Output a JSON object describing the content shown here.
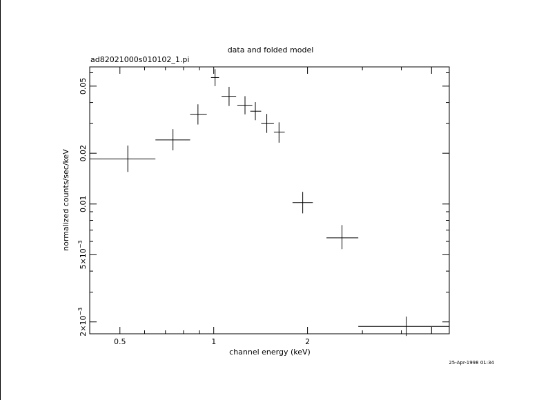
{
  "chart_data": {
    "type": "scatter",
    "title": "data and folded model",
    "subtitle": "ad82021000s010102_1.pi",
    "xlabel": "channel energy (keV)",
    "ylabel": "normalized counts/sec/keV",
    "timestamp": "25-Apr-1998 01:34",
    "xscale": "log",
    "yscale": "log",
    "xlim": [
      0.4,
      5.7
    ],
    "ylim": [
      0.0017,
      0.065
    ],
    "grid": false,
    "x_ticks": [
      {
        "value": 0.5,
        "label": "0.5"
      },
      {
        "value": 1,
        "label": "1"
      },
      {
        "value": 2,
        "label": "2"
      }
    ],
    "y_ticks": [
      {
        "value": 0.05,
        "label": "0.05"
      },
      {
        "value": 0.02,
        "label": "0.02"
      },
      {
        "value": 0.01,
        "label": "0.01"
      },
      {
        "value": 0.005,
        "label": "5×10",
        "exponent": "−3"
      },
      {
        "value": 0.002,
        "label": "2×10",
        "exponent": "−3"
      }
    ],
    "series": [
      {
        "points": [
          {
            "x": 0.53,
            "xlo": 0.4,
            "xhi": 0.65,
            "y": 0.0185,
            "ylo": 0.0155,
            "yhi": 0.0222
          },
          {
            "x": 0.74,
            "xlo": 0.65,
            "xhi": 0.84,
            "y": 0.024,
            "ylo": 0.0208,
            "yhi": 0.0278
          },
          {
            "x": 0.89,
            "xlo": 0.84,
            "xhi": 0.95,
            "y": 0.034,
            "ylo": 0.0296,
            "yhi": 0.039
          },
          {
            "x": 1.01,
            "xlo": 0.98,
            "xhi": 1.04,
            "y": 0.0562,
            "ylo": 0.05,
            "yhi": 0.063
          },
          {
            "x": 1.12,
            "xlo": 1.06,
            "xhi": 1.18,
            "y": 0.0435,
            "ylo": 0.0381,
            "yhi": 0.0495
          },
          {
            "x": 1.26,
            "xlo": 1.19,
            "xhi": 1.33,
            "y": 0.0385,
            "ylo": 0.034,
            "yhi": 0.0436
          },
          {
            "x": 1.36,
            "xlo": 1.31,
            "xhi": 1.42,
            "y": 0.0355,
            "ylo": 0.0314,
            "yhi": 0.0402
          },
          {
            "x": 1.48,
            "xlo": 1.42,
            "xhi": 1.56,
            "y": 0.03,
            "ylo": 0.0264,
            "yhi": 0.0342
          },
          {
            "x": 1.62,
            "xlo": 1.56,
            "xhi": 1.69,
            "y": 0.0267,
            "ylo": 0.0231,
            "yhi": 0.0305
          },
          {
            "x": 1.93,
            "xlo": 1.79,
            "xhi": 2.08,
            "y": 0.0102,
            "ylo": 0.0088,
            "yhi": 0.0118
          },
          {
            "x": 2.58,
            "xlo": 2.3,
            "xhi": 2.91,
            "y": 0.0063,
            "ylo": 0.0054,
            "yhi": 0.0075
          },
          {
            "x": 4.15,
            "xlo": 2.91,
            "xhi": 5.7,
            "y": 0.00188,
            "ylo": 0.00165,
            "yhi": 0.00215
          }
        ]
      }
    ]
  }
}
